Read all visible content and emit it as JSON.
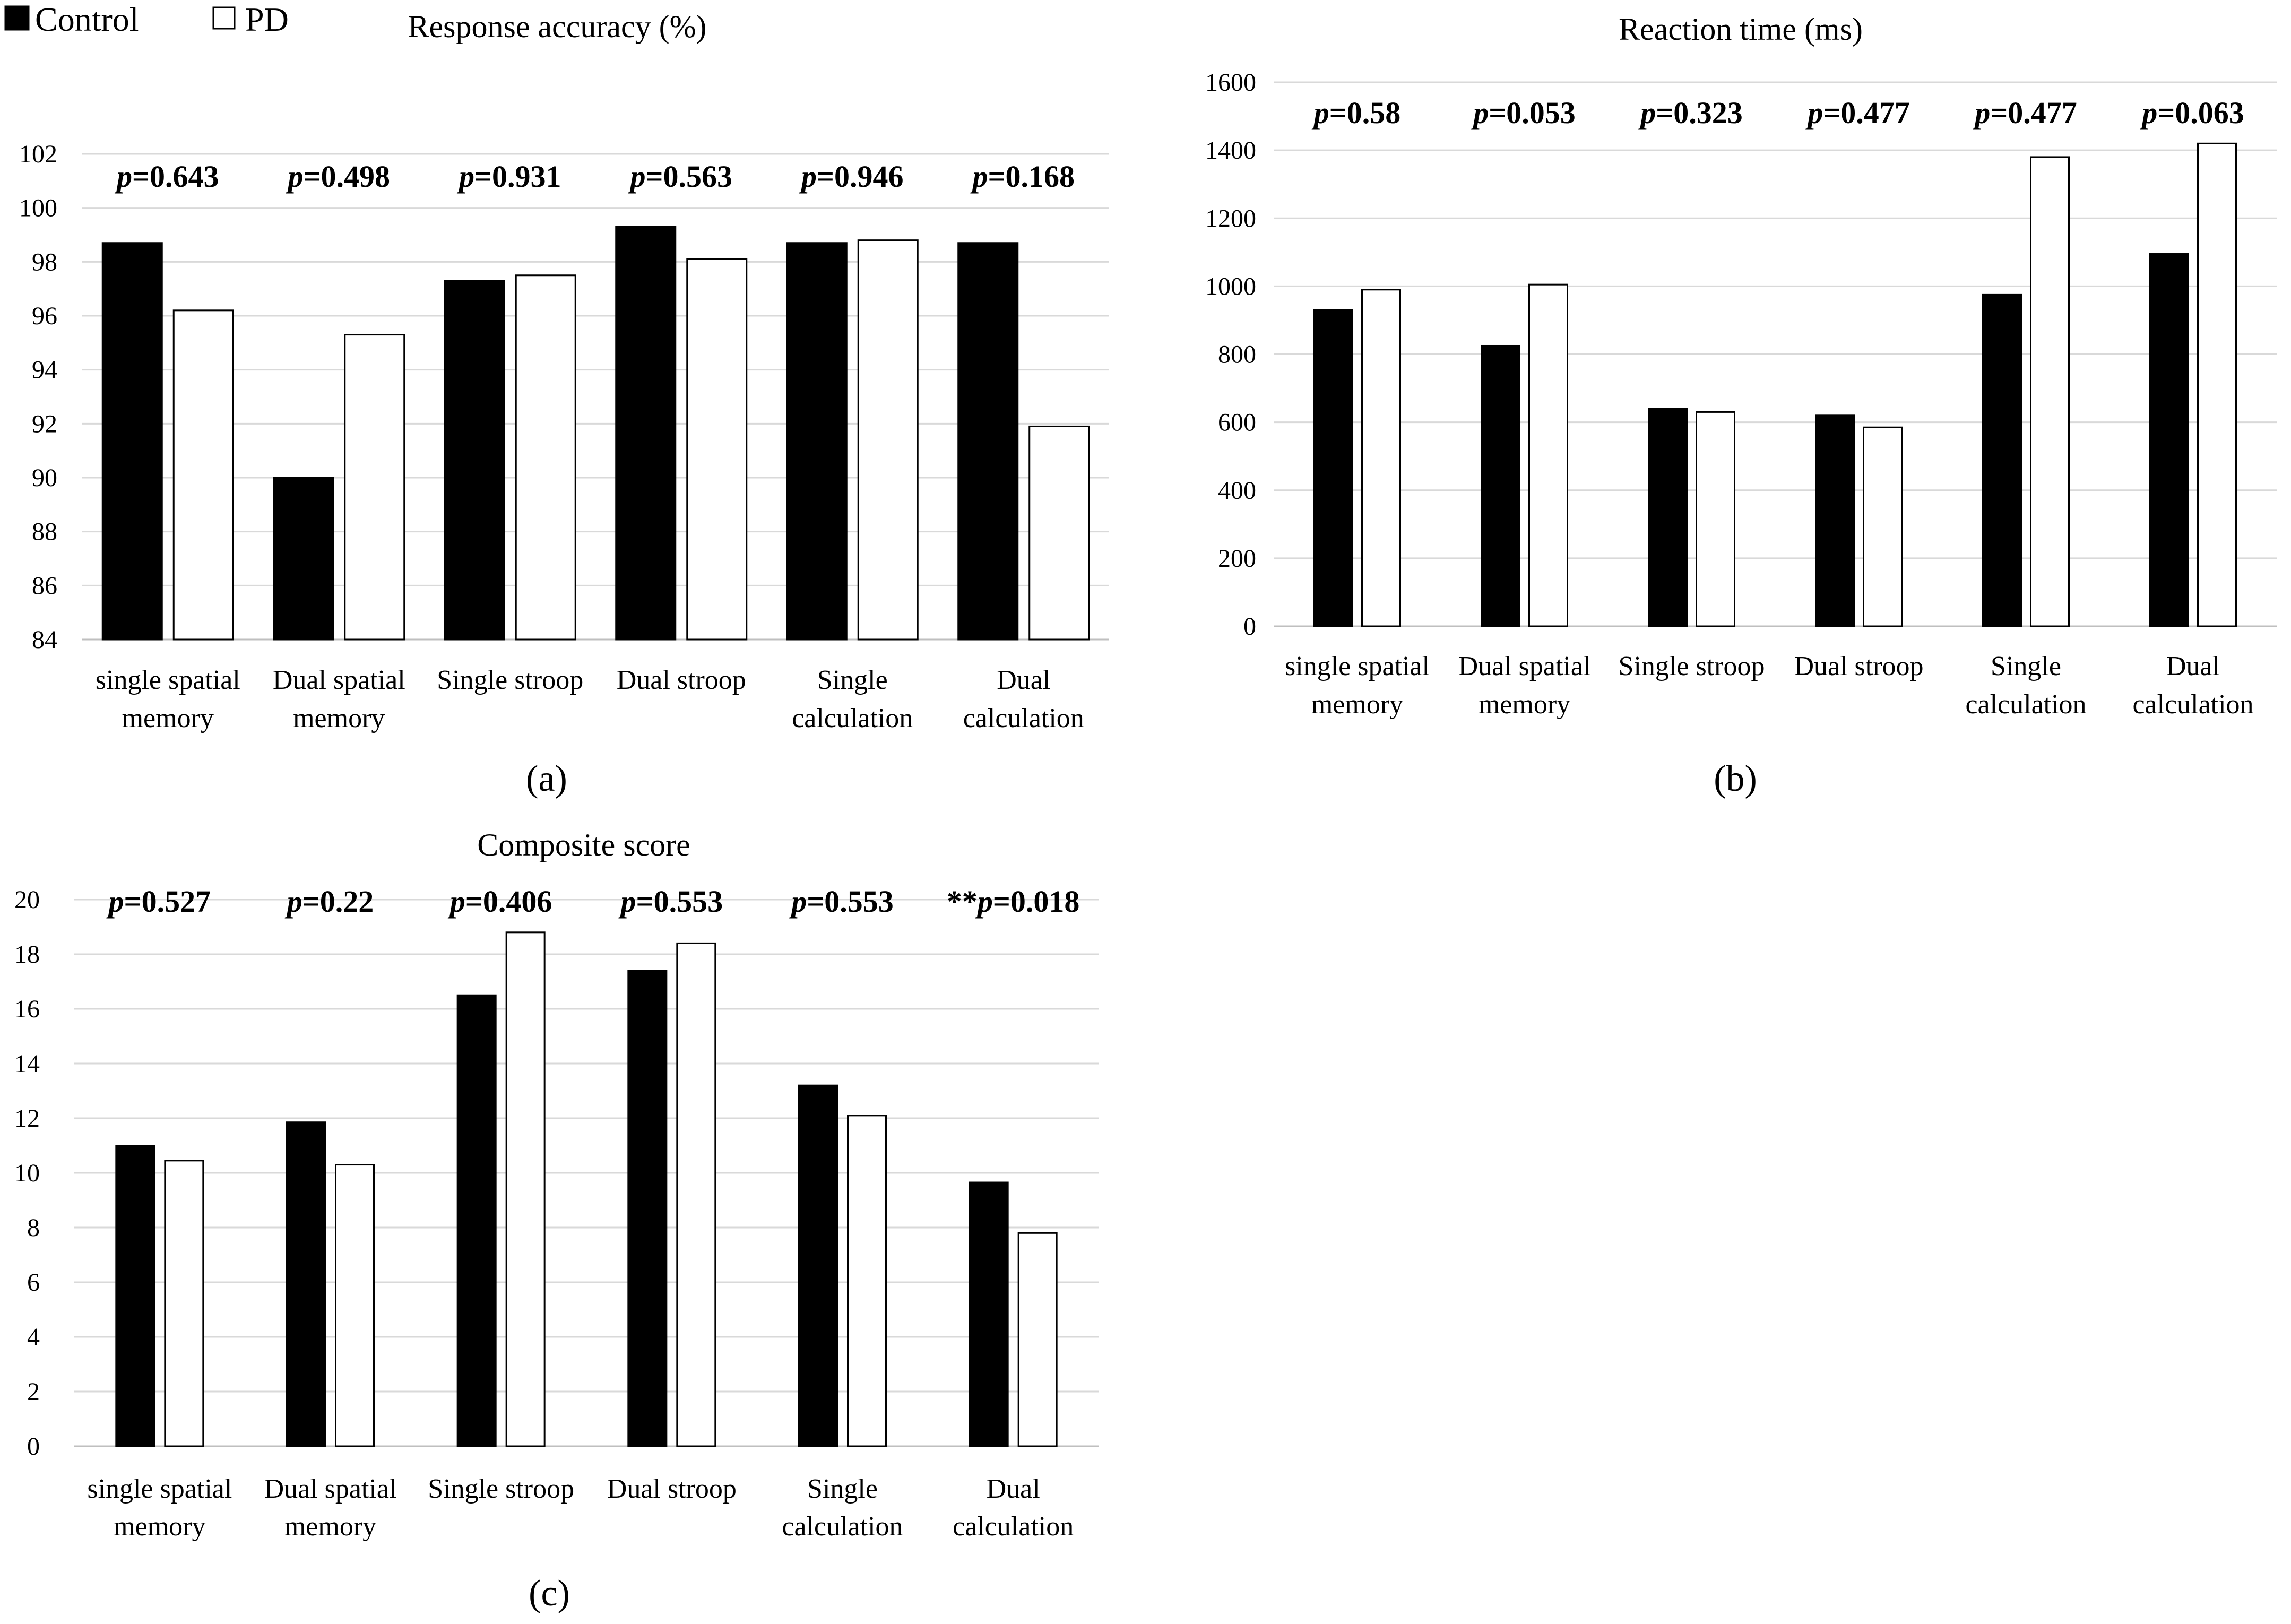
{
  "legend": [
    {
      "label": "Control",
      "color": "#000000"
    },
    {
      "label": "PD",
      "color": "#ffffff"
    }
  ],
  "chart_data": [
    {
      "panel": "(a)",
      "type": "bar",
      "title": "Response accuracy (%)",
      "categories": [
        [
          "single spatial",
          "memory"
        ],
        [
          "Dual spatial",
          "memory"
        ],
        [
          "Single stroop"
        ],
        [
          "Dual stroop"
        ],
        [
          "Single",
          "calculation"
        ],
        [
          "Dual",
          "calculation"
        ]
      ],
      "series": [
        {
          "name": "Control",
          "values": [
            98.7,
            90.0,
            97.3,
            99.3,
            98.7,
            98.7
          ]
        },
        {
          "name": "PD",
          "values": [
            96.2,
            95.3,
            97.5,
            98.1,
            98.8,
            91.9
          ]
        }
      ],
      "annotations": [
        {
          "prefix": "",
          "stat": "p",
          "value": "=0.643"
        },
        {
          "prefix": "",
          "stat": "p",
          "value": "=0.498"
        },
        {
          "prefix": "",
          "stat": "p",
          "value": "=0.931"
        },
        {
          "prefix": "",
          "stat": "p",
          "value": "=0.563"
        },
        {
          "prefix": "",
          "stat": "p",
          "value": "=0.946"
        },
        {
          "prefix": "",
          "stat": "p",
          "value": "=0.168"
        }
      ],
      "ylim": [
        84,
        102
      ],
      "yticks": [
        84,
        86,
        88,
        90,
        92,
        94,
        96,
        98,
        100,
        102
      ],
      "grid": true
    },
    {
      "panel": "(b)",
      "type": "bar",
      "title": "Reaction time (ms)",
      "categories": [
        [
          "single spatial",
          "memory"
        ],
        [
          "Dual spatial",
          "memory"
        ],
        [
          "Single stroop"
        ],
        [
          "Dual stroop"
        ],
        [
          "Single",
          "calculation"
        ],
        [
          "Dual",
          "calculation"
        ]
      ],
      "series": [
        {
          "name": "Control",
          "values": [
            930,
            825,
            640,
            620,
            975,
            1095
          ]
        },
        {
          "name": "PD",
          "values": [
            990,
            1005,
            630,
            585,
            1380,
            1420
          ]
        }
      ],
      "annotations": [
        {
          "prefix": "",
          "stat": "p",
          "value": "=0.58"
        },
        {
          "prefix": "",
          "stat": "p",
          "value": "=0.053"
        },
        {
          "prefix": "",
          "stat": "p",
          "value": "=0.323"
        },
        {
          "prefix": "",
          "stat": "p",
          "value": "=0.477"
        },
        {
          "prefix": "",
          "stat": "p",
          "value": "=0.477"
        },
        {
          "prefix": "",
          "stat": "p",
          "value": "=0.063"
        }
      ],
      "ylim": [
        0,
        1600
      ],
      "yticks": [
        0,
        200,
        400,
        600,
        800,
        1000,
        1200,
        1400,
        1600
      ],
      "grid": true
    },
    {
      "panel": "(c)",
      "type": "bar",
      "title": "Composite score",
      "categories": [
        [
          "single spatial",
          "memory"
        ],
        [
          "Dual spatial",
          "memory"
        ],
        [
          "Single stroop"
        ],
        [
          "Dual stroop"
        ],
        [
          "Single",
          "calculation"
        ],
        [
          "Dual",
          "calculation"
        ]
      ],
      "series": [
        {
          "name": "Control",
          "values": [
            11.0,
            11.85,
            16.5,
            17.4,
            13.2,
            9.65
          ]
        },
        {
          "name": "PD",
          "values": [
            10.45,
            10.3,
            18.8,
            18.4,
            12.1,
            7.8
          ]
        }
      ],
      "annotations": [
        {
          "prefix": "",
          "stat": "p",
          "value": "=0.527"
        },
        {
          "prefix": "",
          "stat": "p",
          "value": "=0.22"
        },
        {
          "prefix": "",
          "stat": "p",
          "value": "=0.406"
        },
        {
          "prefix": "",
          "stat": "p",
          "value": "=0.553"
        },
        {
          "prefix": "",
          "stat": "p",
          "value": "=0.553"
        },
        {
          "prefix": "**",
          "stat": "p",
          "value": "=0.018"
        }
      ],
      "ylim": [
        0,
        20
      ],
      "yticks": [
        0,
        2,
        4,
        6,
        8,
        10,
        12,
        14,
        16,
        18,
        20
      ],
      "grid": true
    }
  ]
}
